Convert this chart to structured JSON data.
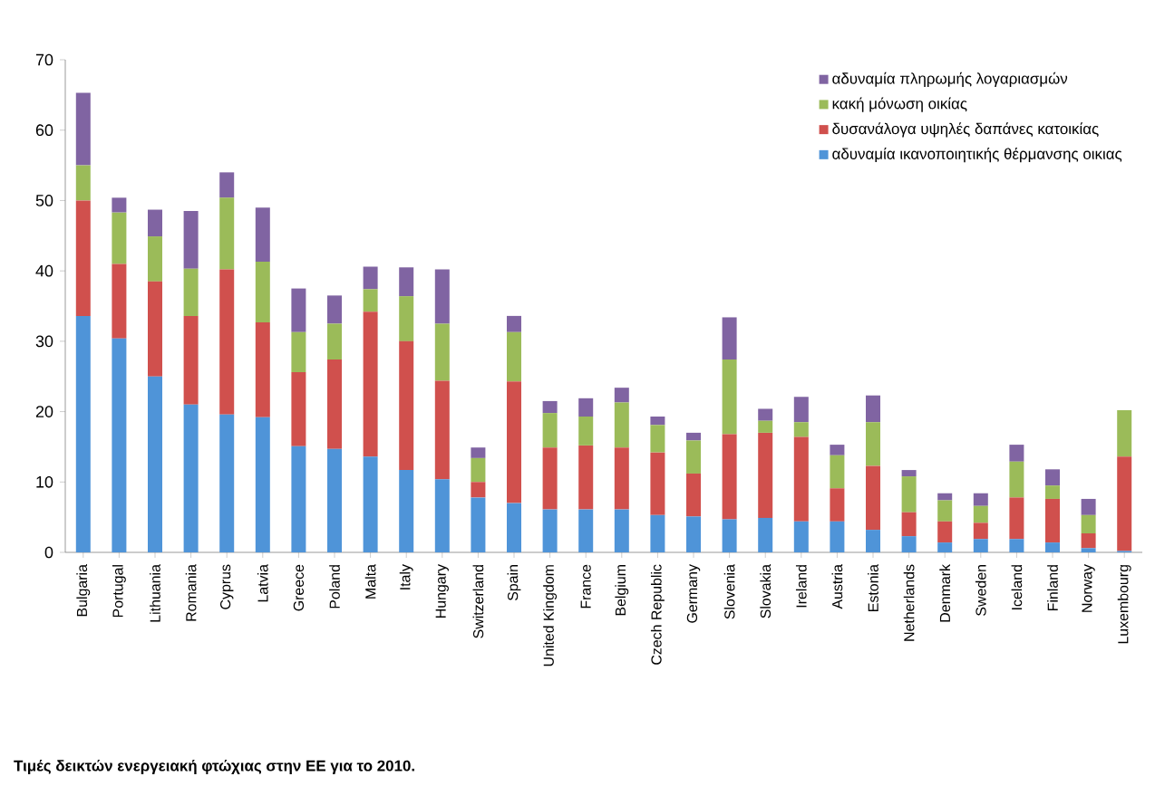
{
  "chart_data": {
    "type": "bar",
    "stacked": true,
    "legend": "top right",
    "categories": [
      "Bulgaria",
      "Portugal",
      "Lithuania",
      "Romania",
      "Cyprus",
      "Latvia",
      "Greece",
      "Poland",
      "Malta",
      "Italy",
      "Hungary",
      "Switzerland",
      "Spain",
      "United Kingdom",
      "France",
      "Belgium",
      "Czech Republic",
      "Germany",
      "Slovenia",
      "Slovakia",
      "Ireland",
      "Austria",
      "Estonia",
      "Netherlands",
      "Denmark",
      "Sweden",
      "Iceland",
      "Finland",
      "Norway",
      "Luxembourg"
    ],
    "series": [
      {
        "name": "αδυναμία ικανοποιητικής θέρμανσης οικιας",
        "color": "#4f94d8",
        "values": [
          33.6,
          30.4,
          25,
          21,
          19.6,
          19.2,
          15.1,
          14.7,
          13.6,
          11.7,
          10.4,
          7.8,
          7,
          6.1,
          6.1,
          6.1,
          5.3,
          5.1,
          4.7,
          4.9,
          4.4,
          4.4,
          3.2,
          2.3,
          1.4,
          1.9,
          1.9,
          1.4,
          0.6,
          0.2
        ]
      },
      {
        "name": "δυσανάλογα υψηλές δαπάνες κατοικίας",
        "color": "#d0504d",
        "values": [
          16.4,
          10.6,
          13.5,
          12.6,
          20.6,
          13.5,
          10.5,
          12.7,
          20.6,
          18.3,
          14,
          2.2,
          17.3,
          8.8,
          9.1,
          8.8,
          8.9,
          6.1,
          12.1,
          12.1,
          12,
          4.7,
          9.1,
          3.4,
          3,
          2.3,
          5.9,
          6.2,
          2.1,
          13.4
        ]
      },
      {
        "name": "κακή μόνωση οικίας",
        "color": "#9bbb59",
        "values": [
          5,
          7.3,
          6.4,
          6.7,
          10.2,
          8.6,
          5.7,
          5.1,
          3.2,
          6.4,
          8.1,
          3.4,
          7,
          4.9,
          4.1,
          6.4,
          3.9,
          4.7,
          10.6,
          1.7,
          2.1,
          4.7,
          6.2,
          5.1,
          3,
          2.4,
          5.1,
          1.9,
          2.6,
          6.6
        ]
      },
      {
        "name": "αδυναμία πληρωμής λογαριασμών",
        "color": "#8064a2",
        "values": [
          10.3,
          2.1,
          3.8,
          8.2,
          3.6,
          7.7,
          6.2,
          4,
          3.2,
          4.1,
          7.7,
          1.5,
          2.3,
          1.7,
          2.6,
          2.1,
          1.2,
          1.1,
          6,
          1.7,
          3.6,
          1.5,
          3.8,
          0.9,
          1,
          1.8,
          2.4,
          2.3,
          2.3,
          null
        ]
      }
    ],
    "ylim": [
      0,
      70
    ],
    "yticks": [
      0,
      10,
      20,
      30,
      40,
      50,
      60,
      70
    ],
    "annotations": [
      "Τιμές δεικτών ενεργειακή φτώχιας στην ΕΕ για το 2010."
    ]
  }
}
